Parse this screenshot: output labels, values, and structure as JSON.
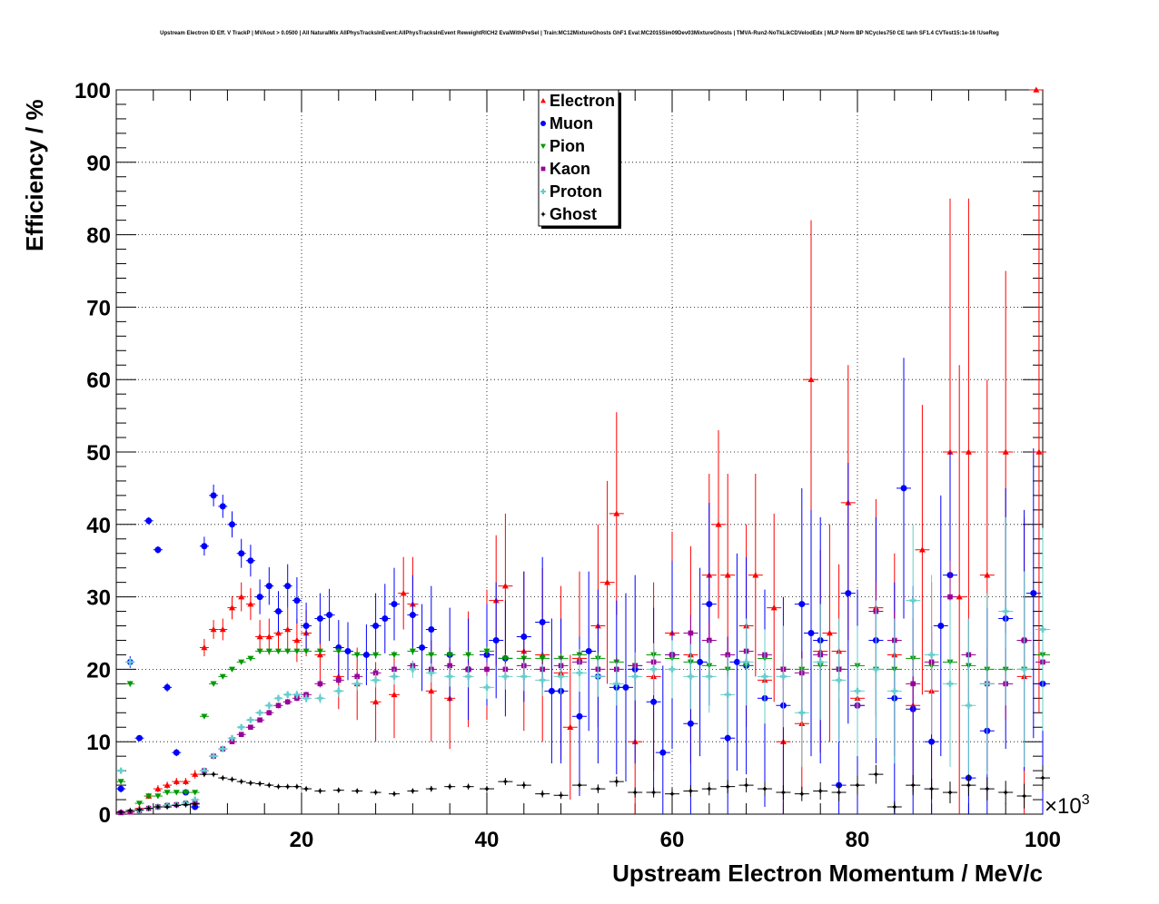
{
  "chart_data": {
    "type": "scatter",
    "title": "Upstream Electron ID Eff. V TrackP | MVAout > 0.0500 | All NaturalMix AllPhysTracksInEvent:AllPhysTracksInEvent ReweightRICH2 EvalWithPreSel | Train:MC12MixtureGhosts GhF1 Eval:MC2015Sim09Dev03MixtureGhosts | TMVA-Run2-NoTkLikCDVelodEdx | MLP Norm BP NCycles750 CE tanh SF1.4 CVTest15:1e-16 !UseReg",
    "xlabel": "Upstream Electron Momentum / MeV/c",
    "ylabel": "Efficiency / %",
    "x_exponent_label": "×10",
    "x_exponent_power": "3",
    "xlim": [
      0,
      100
    ],
    "ylim": [
      0,
      100
    ],
    "x_ticks": [
      "20",
      "40",
      "60",
      "80",
      "100"
    ],
    "y_ticks": [
      "0",
      "10",
      "20",
      "30",
      "40",
      "50",
      "60",
      "70",
      "80",
      "90",
      "100"
    ],
    "grid": true,
    "legend_position": "top-center",
    "series": [
      {
        "name": "Electron",
        "color": "#ff0000",
        "marker": "triangle-up",
        "x": [
          1.5,
          2.5,
          3.5,
          4.5,
          5.5,
          6.5,
          7.5,
          8.5,
          9.5,
          10.5,
          11.5,
          12.5,
          13.5,
          14.5,
          15.5,
          16.5,
          17.5,
          18.5,
          19.5,
          20.5,
          22,
          24,
          26,
          28,
          30,
          31,
          32,
          34,
          36,
          38,
          40,
          41,
          42,
          44,
          46,
          48,
          49,
          50,
          52,
          53,
          54,
          56,
          58,
          60,
          62,
          64,
          65,
          66,
          68,
          69,
          70,
          71,
          72,
          74,
          75,
          76,
          77,
          78,
          79,
          80,
          82,
          84,
          86,
          87,
          88,
          90,
          91,
          92,
          94,
          96,
          98,
          99.3,
          99.6
        ],
        "y": [
          0.3,
          0.8,
          2.5,
          3.5,
          4,
          4.5,
          4.5,
          5.5,
          23,
          25.5,
          25.5,
          28.5,
          30,
          29,
          24.5,
          24.5,
          25,
          25.5,
          24,
          25,
          22,
          19,
          18,
          15.5,
          16.5,
          30.5,
          29,
          17,
          16,
          20,
          22,
          29.5,
          31.5,
          22.5,
          22,
          19.5,
          12,
          21.5,
          26,
          32,
          41.5,
          10,
          19,
          25,
          22,
          33,
          40,
          33,
          26,
          33,
          18.5,
          28.5,
          10,
          12.5,
          60,
          22.5,
          25,
          22.5,
          43,
          16,
          28.5,
          22,
          15,
          36.5,
          17,
          50,
          30,
          50,
          33,
          50,
          19,
          100,
          50
        ],
        "err": [
          0.2,
          0.3,
          0.4,
          0.5,
          0.5,
          0.5,
          0.5,
          0.6,
          1.2,
          1.3,
          1.5,
          1.6,
          2,
          2.2,
          2.3,
          2.5,
          2.8,
          3,
          3,
          3.2,
          4,
          4.5,
          5,
          5.5,
          6,
          5,
          6.5,
          7,
          7,
          8,
          9,
          9,
          10,
          11,
          12,
          12,
          10,
          12,
          14,
          14,
          14,
          10,
          13,
          14,
          15,
          14,
          13,
          14,
          14,
          14,
          12,
          13,
          10,
          10,
          22,
          14,
          15,
          12,
          19,
          15,
          15,
          14,
          12,
          20,
          15,
          35,
          32,
          35,
          27,
          25,
          22,
          0,
          36
        ]
      },
      {
        "name": "Muon",
        "color": "#0000ff",
        "marker": "circle",
        "x": [
          0.5,
          1.5,
          2.5,
          3.5,
          4.5,
          5.5,
          6.5,
          7.5,
          8.5,
          9.5,
          10.5,
          11.5,
          12.5,
          13.5,
          14.5,
          15.5,
          16.5,
          17.5,
          18.5,
          19.5,
          20.5,
          22,
          23,
          24,
          25,
          27,
          28,
          29,
          30,
          32,
          33,
          34,
          36,
          38,
          40,
          41,
          42,
          44,
          46,
          47,
          48,
          50,
          51,
          52,
          54,
          55,
          56,
          58,
          59,
          60,
          62,
          63,
          64,
          66,
          67,
          68,
          70,
          72,
          74,
          75,
          76,
          78,
          79,
          80,
          82,
          84,
          85,
          86,
          88,
          89,
          90,
          92,
          94,
          96,
          98,
          99,
          100
        ],
        "y": [
          3.5,
          21,
          10.5,
          40.5,
          36.5,
          17.5,
          8.5,
          3,
          1,
          37,
          44,
          42.5,
          40,
          36,
          35,
          30,
          31.5,
          28,
          31.5,
          29.5,
          26,
          27,
          27.5,
          23,
          22.5,
          22,
          26,
          27,
          29,
          27.5,
          23,
          25.5,
          22,
          20,
          22,
          24,
          21.5,
          24.5,
          26.5,
          17,
          17,
          13.5,
          22.5,
          19,
          17.5,
          17.5,
          20,
          15.5,
          8.5,
          22,
          12.5,
          21,
          29,
          10.5,
          21,
          20.5,
          16,
          15,
          29,
          25,
          24,
          4,
          30.5,
          15,
          24,
          16,
          45,
          14.5,
          10,
          26,
          33,
          5,
          11.5,
          27,
          24,
          30.5,
          18
        ],
        "err": [
          0.5,
          0.8,
          0.4,
          0.5,
          0.5,
          0.6,
          0.5,
          0.4,
          0.3,
          1.3,
          1.5,
          1.6,
          1.8,
          2,
          2.2,
          2.4,
          2.6,
          2.8,
          3,
          3.2,
          3.2,
          3.5,
          3.6,
          3.8,
          4,
          4.2,
          4.5,
          4.8,
          5,
          5.5,
          6,
          6,
          6.5,
          7,
          7,
          8,
          8,
          9,
          9,
          10,
          10,
          11,
          11,
          12,
          12,
          13,
          13,
          13,
          12,
          13,
          13,
          13,
          14,
          14,
          15,
          15,
          15,
          15,
          16,
          17,
          17,
          12,
          18,
          16,
          17,
          16,
          18,
          17,
          16,
          18,
          17,
          12,
          17,
          18,
          18,
          20,
          20
        ]
      },
      {
        "name": "Pion",
        "color": "#009900",
        "marker": "triangle-down",
        "x": [
          0.5,
          1.5,
          2.5,
          3.5,
          4.5,
          5.5,
          6.5,
          7.5,
          8.5,
          9.5,
          10.5,
          11.5,
          12.5,
          13.5,
          14.5,
          15.5,
          16.5,
          17.5,
          18.5,
          19.5,
          20.5,
          22,
          24,
          26,
          28,
          30,
          32,
          34,
          36,
          38,
          40,
          42,
          44,
          46,
          48,
          50,
          52,
          54,
          56,
          58,
          60,
          62,
          64,
          66,
          68,
          70,
          72,
          74,
          76,
          78,
          80,
          82,
          84,
          86,
          88,
          90,
          92,
          94,
          96,
          98,
          100
        ],
        "y": [
          4.5,
          18,
          1.5,
          2.5,
          2.5,
          3,
          3,
          3,
          3,
          13.5,
          18,
          19,
          20,
          21,
          21.5,
          22.5,
          22.5,
          22.5,
          22.5,
          22.5,
          22.5,
          22.5,
          22.5,
          22,
          22,
          22,
          22.5,
          22,
          22,
          22,
          22.5,
          21.5,
          21.5,
          21.5,
          21.5,
          22,
          21.5,
          21,
          20.5,
          22,
          21.5,
          21,
          20.5,
          20,
          20.5,
          21.5,
          20,
          20,
          20.5,
          20,
          20.5,
          20,
          20,
          21.5,
          20.5,
          21,
          20.5,
          20,
          20,
          20,
          22
        ],
        "err": [
          0.3,
          0.4,
          0.2,
          0.2,
          0.2,
          0.2,
          0.2,
          0.2,
          0.2,
          0.3,
          0.3,
          0.3,
          0.3,
          0.3,
          0.3,
          0.3,
          0.3,
          0.3,
          0.3,
          0.3,
          0.3,
          0.3,
          0.4,
          0.4,
          0.4,
          0.5,
          0.5,
          0.5,
          0.5,
          0.6,
          0.6,
          0.6,
          0.7,
          0.7,
          0.7,
          0.8,
          0.8,
          0.8,
          0.9,
          0.9,
          0.9,
          1,
          1,
          1,
          1,
          1,
          1,
          1,
          1,
          1,
          1,
          1,
          1,
          1,
          1,
          1,
          1,
          1,
          1,
          1,
          1
        ]
      },
      {
        "name": "Kaon",
        "color": "#990099",
        "marker": "square",
        "x": [
          0.5,
          1.5,
          2.5,
          3.5,
          4.5,
          5.5,
          6.5,
          7.5,
          8.5,
          9.5,
          10.5,
          11.5,
          12.5,
          13.5,
          14.5,
          15.5,
          16.5,
          17.5,
          18.5,
          19.5,
          20.5,
          22,
          24,
          26,
          28,
          30,
          32,
          34,
          36,
          38,
          40,
          42,
          44,
          46,
          48,
          50,
          52,
          54,
          56,
          58,
          60,
          62,
          64,
          66,
          68,
          70,
          72,
          74,
          76,
          78,
          80,
          82,
          84,
          86,
          88,
          90,
          92,
          94,
          96,
          98,
          100
        ],
        "y": [
          0.2,
          0.3,
          0.5,
          0.8,
          1,
          1.2,
          1.3,
          1.5,
          1.5,
          6,
          8,
          9,
          10,
          11,
          12,
          13,
          14,
          15,
          15.5,
          16,
          16.5,
          18,
          18.5,
          19,
          19.5,
          20,
          20.5,
          20,
          20.5,
          20,
          20,
          20,
          20.5,
          20,
          20.5,
          21,
          20,
          20,
          20.5,
          21,
          22,
          25,
          24,
          22,
          22.5,
          22,
          20,
          19.5,
          22,
          20,
          15,
          28,
          24,
          18,
          21,
          30,
          22,
          18,
          18,
          24,
          21
        ],
        "err": [
          0.1,
          0.1,
          0.1,
          0.1,
          0.1,
          0.1,
          0.1,
          0.1,
          0.1,
          0.3,
          0.3,
          0.3,
          0.3,
          0.3,
          0.3,
          0.3,
          0.4,
          0.4,
          0.4,
          0.4,
          0.4,
          0.5,
          0.5,
          0.6,
          0.6,
          0.7,
          0.7,
          0.8,
          0.8,
          0.9,
          1,
          1,
          1.1,
          1.2,
          1.3,
          1.4,
          1.5,
          1.6,
          1.7,
          1.8,
          2,
          2.5,
          2.5,
          2.5,
          2.5,
          2.5,
          2.5,
          2.5,
          3,
          3,
          3,
          4,
          4,
          4,
          4,
          5,
          5,
          5,
          5,
          6,
          6
        ]
      },
      {
        "name": "Proton",
        "color": "#66cccc",
        "marker": "cross",
        "x": [
          0.5,
          1.5,
          2.5,
          3.5,
          4.5,
          5.5,
          6.5,
          7.5,
          8.5,
          9.5,
          10.5,
          11.5,
          12.5,
          13.5,
          14.5,
          15.5,
          16.5,
          17.5,
          18.5,
          19.5,
          20.5,
          22,
          24,
          26,
          28,
          30,
          32,
          34,
          36,
          38,
          40,
          42,
          44,
          46,
          48,
          50,
          52,
          54,
          56,
          58,
          60,
          62,
          64,
          66,
          68,
          70,
          72,
          74,
          76,
          78,
          80,
          82,
          84,
          86,
          88,
          90,
          92,
          94,
          96,
          98,
          100
        ],
        "y": [
          6,
          21,
          0.5,
          0.8,
          1,
          1.2,
          1.3,
          1.5,
          2,
          6,
          8,
          9,
          10.5,
          12,
          13,
          14,
          15,
          16,
          16.5,
          16.5,
          16,
          16,
          17,
          18,
          18.5,
          19,
          20,
          19.5,
          19,
          19,
          17.5,
          19,
          19,
          18.5,
          19,
          19.5,
          19,
          18,
          19,
          20,
          20,
          19,
          19,
          16.5,
          21,
          19,
          19,
          14,
          21,
          18.5,
          17,
          20,
          17,
          29.5,
          22,
          18,
          15,
          18,
          28,
          20,
          25.5
        ],
        "err": [
          0.4,
          0.6,
          0.1,
          0.1,
          0.1,
          0.1,
          0.1,
          0.1,
          0.2,
          0.3,
          0.3,
          0.3,
          0.4,
          0.4,
          0.4,
          0.4,
          0.5,
          0.5,
          0.5,
          0.6,
          0.6,
          0.7,
          0.8,
          0.9,
          1,
          1.1,
          1.2,
          1.3,
          1.4,
          1.5,
          1.6,
          1.8,
          2,
          2.2,
          2.4,
          2.6,
          2.8,
          3,
          3.3,
          3.6,
          4,
          4.5,
          5,
          5.5,
          6,
          6.5,
          7,
          7.5,
          8,
          8.5,
          9,
          9.5,
          10,
          10.5,
          11,
          11.5,
          12,
          12.5,
          13,
          13.5,
          14
        ]
      },
      {
        "name": "Ghost",
        "color": "#000000",
        "marker": "star",
        "x": [
          0.5,
          1.5,
          2.5,
          3.5,
          4.5,
          5.5,
          6.5,
          7.5,
          8.5,
          9.5,
          10.5,
          11.5,
          12.5,
          13.5,
          14.5,
          15.5,
          16.5,
          17.5,
          18.5,
          19.5,
          20.5,
          22,
          24,
          26,
          28,
          30,
          32,
          34,
          36,
          38,
          40,
          42,
          44,
          46,
          48,
          50,
          52,
          54,
          56,
          58,
          60,
          62,
          64,
          66,
          68,
          70,
          72,
          74,
          76,
          78,
          80,
          82,
          84,
          86,
          88,
          90,
          92,
          94,
          96,
          98,
          100
        ],
        "y": [
          0.3,
          0.5,
          0.6,
          0.8,
          1,
          1,
          1.2,
          1.3,
          1.4,
          5.5,
          5.5,
          5,
          4.8,
          4.5,
          4.3,
          4.2,
          4,
          3.8,
          3.8,
          3.8,
          3.5,
          3.2,
          3.3,
          3.2,
          3,
          2.8,
          3.2,
          3.5,
          3.8,
          3.8,
          3.5,
          4.5,
          4,
          2.8,
          2.6,
          4,
          3.5,
          4.5,
          3,
          3,
          2.8,
          3.2,
          3.5,
          3.8,
          4,
          3.5,
          3,
          2.8,
          3.2,
          3,
          4,
          5.5,
          1,
          4,
          3.5,
          3,
          4,
          3.5,
          3,
          2.5,
          5
        ],
        "err": [
          0.1,
          0.1,
          0.1,
          0.1,
          0.1,
          0.1,
          0.1,
          0.1,
          0.1,
          0.2,
          0.2,
          0.2,
          0.2,
          0.2,
          0.2,
          0.2,
          0.2,
          0.2,
          0.2,
          0.2,
          0.2,
          0.2,
          0.3,
          0.3,
          0.3,
          0.3,
          0.3,
          0.4,
          0.4,
          0.4,
          0.4,
          0.5,
          0.5,
          0.5,
          0.5,
          0.6,
          0.6,
          0.7,
          0.7,
          0.7,
          0.8,
          0.8,
          0.9,
          0.9,
          1,
          1,
          1,
          1,
          1.2,
          1.2,
          1.3,
          1.3,
          0.8,
          1.4,
          1.4,
          1.5,
          1.5,
          1.6,
          1.6,
          1.7,
          1.8
        ]
      }
    ]
  }
}
